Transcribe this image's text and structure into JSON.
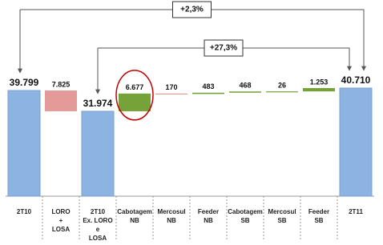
{
  "chart_data": {
    "type": "waterfall",
    "categories": [
      [
        "2T10"
      ],
      [
        "LORO",
        "+",
        "LOSA"
      ],
      [
        "2T10",
        "Ex. LORO",
        "e",
        "LOSA"
      ],
      [
        "Cabotagem",
        "NB"
      ],
      [
        "Mercosul",
        "NB"
      ],
      [
        "Feeder",
        "NB"
      ],
      [
        "Cabotagem",
        "SB"
      ],
      [
        "Mercosul",
        "SB"
      ],
      [
        "Feeder",
        "SB"
      ],
      [
        "2T11"
      ]
    ],
    "values": [
      39799,
      7825,
      31974,
      6677,
      170,
      483,
      468,
      26,
      1253,
      40710
    ],
    "value_labels": [
      "39.799",
      "7.825",
      "31.974",
      "6.677",
      "170",
      "483",
      "468",
      "26",
      "1.253",
      "40.710"
    ],
    "kinds": [
      "total",
      "decrease",
      "total",
      "increase",
      "decrease",
      "increase",
      "increase",
      "increase",
      "increase",
      "total"
    ],
    "colors": {
      "total": "#8db3e2",
      "decrease": "#e59a9a",
      "increase": "#76a23a"
    },
    "annotations": [
      "+2,3%",
      "+27,3%"
    ]
  }
}
